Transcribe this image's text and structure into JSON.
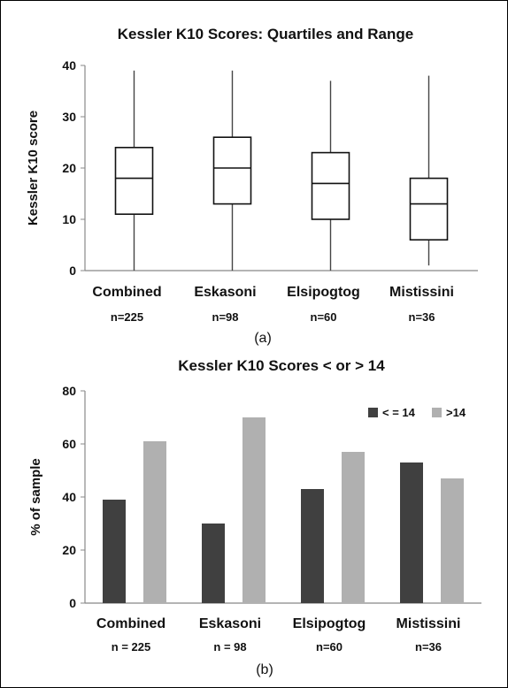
{
  "chart_data": [
    {
      "type": "box",
      "title": "Kessler K10 Scores: Quartiles and Range",
      "ylabel": "Kessler K10 score",
      "ylim": [
        0,
        40
      ],
      "yticks": [
        "0",
        "10",
        "20",
        "30",
        "40"
      ],
      "categories": [
        "Combined",
        "Eskasoni",
        "Elsipogtog",
        "Mistissini"
      ],
      "sample_sizes": [
        "n=225",
        "n=98",
        "n=60",
        "n=36"
      ],
      "panel_label": "(a)",
      "boxes": [
        {
          "min": 0,
          "q1": 11,
          "median": 18,
          "q3": 24,
          "max": 39
        },
        {
          "min": 0,
          "q1": 13,
          "median": 20,
          "q3": 26,
          "max": 39
        },
        {
          "min": 0,
          "q1": 10,
          "median": 17,
          "q3": 23,
          "max": 37
        },
        {
          "min": 1,
          "q1": 6,
          "median": 13,
          "q3": 18,
          "max": 38
        }
      ]
    },
    {
      "type": "bar",
      "title": "Kessler K10 Scores < or > 14",
      "ylabel": "% of sample",
      "ylim": [
        0,
        80
      ],
      "yticks": [
        "0",
        "20",
        "40",
        "60",
        "80"
      ],
      "categories": [
        "Combined",
        "Eskasoni",
        "Elsipogtog",
        "Mistissini"
      ],
      "sample_sizes": [
        "n = 225",
        "n = 98",
        "n=60",
        "n=36"
      ],
      "panel_label": "(b)",
      "legend_position": "top-right",
      "series": [
        {
          "name": "< = 14",
          "color": "#404040",
          "values": [
            39,
            30,
            43,
            53
          ]
        },
        {
          "name": ">14",
          "color": "#b0b0b0",
          "values": [
            61,
            70,
            57,
            47
          ]
        }
      ]
    }
  ]
}
